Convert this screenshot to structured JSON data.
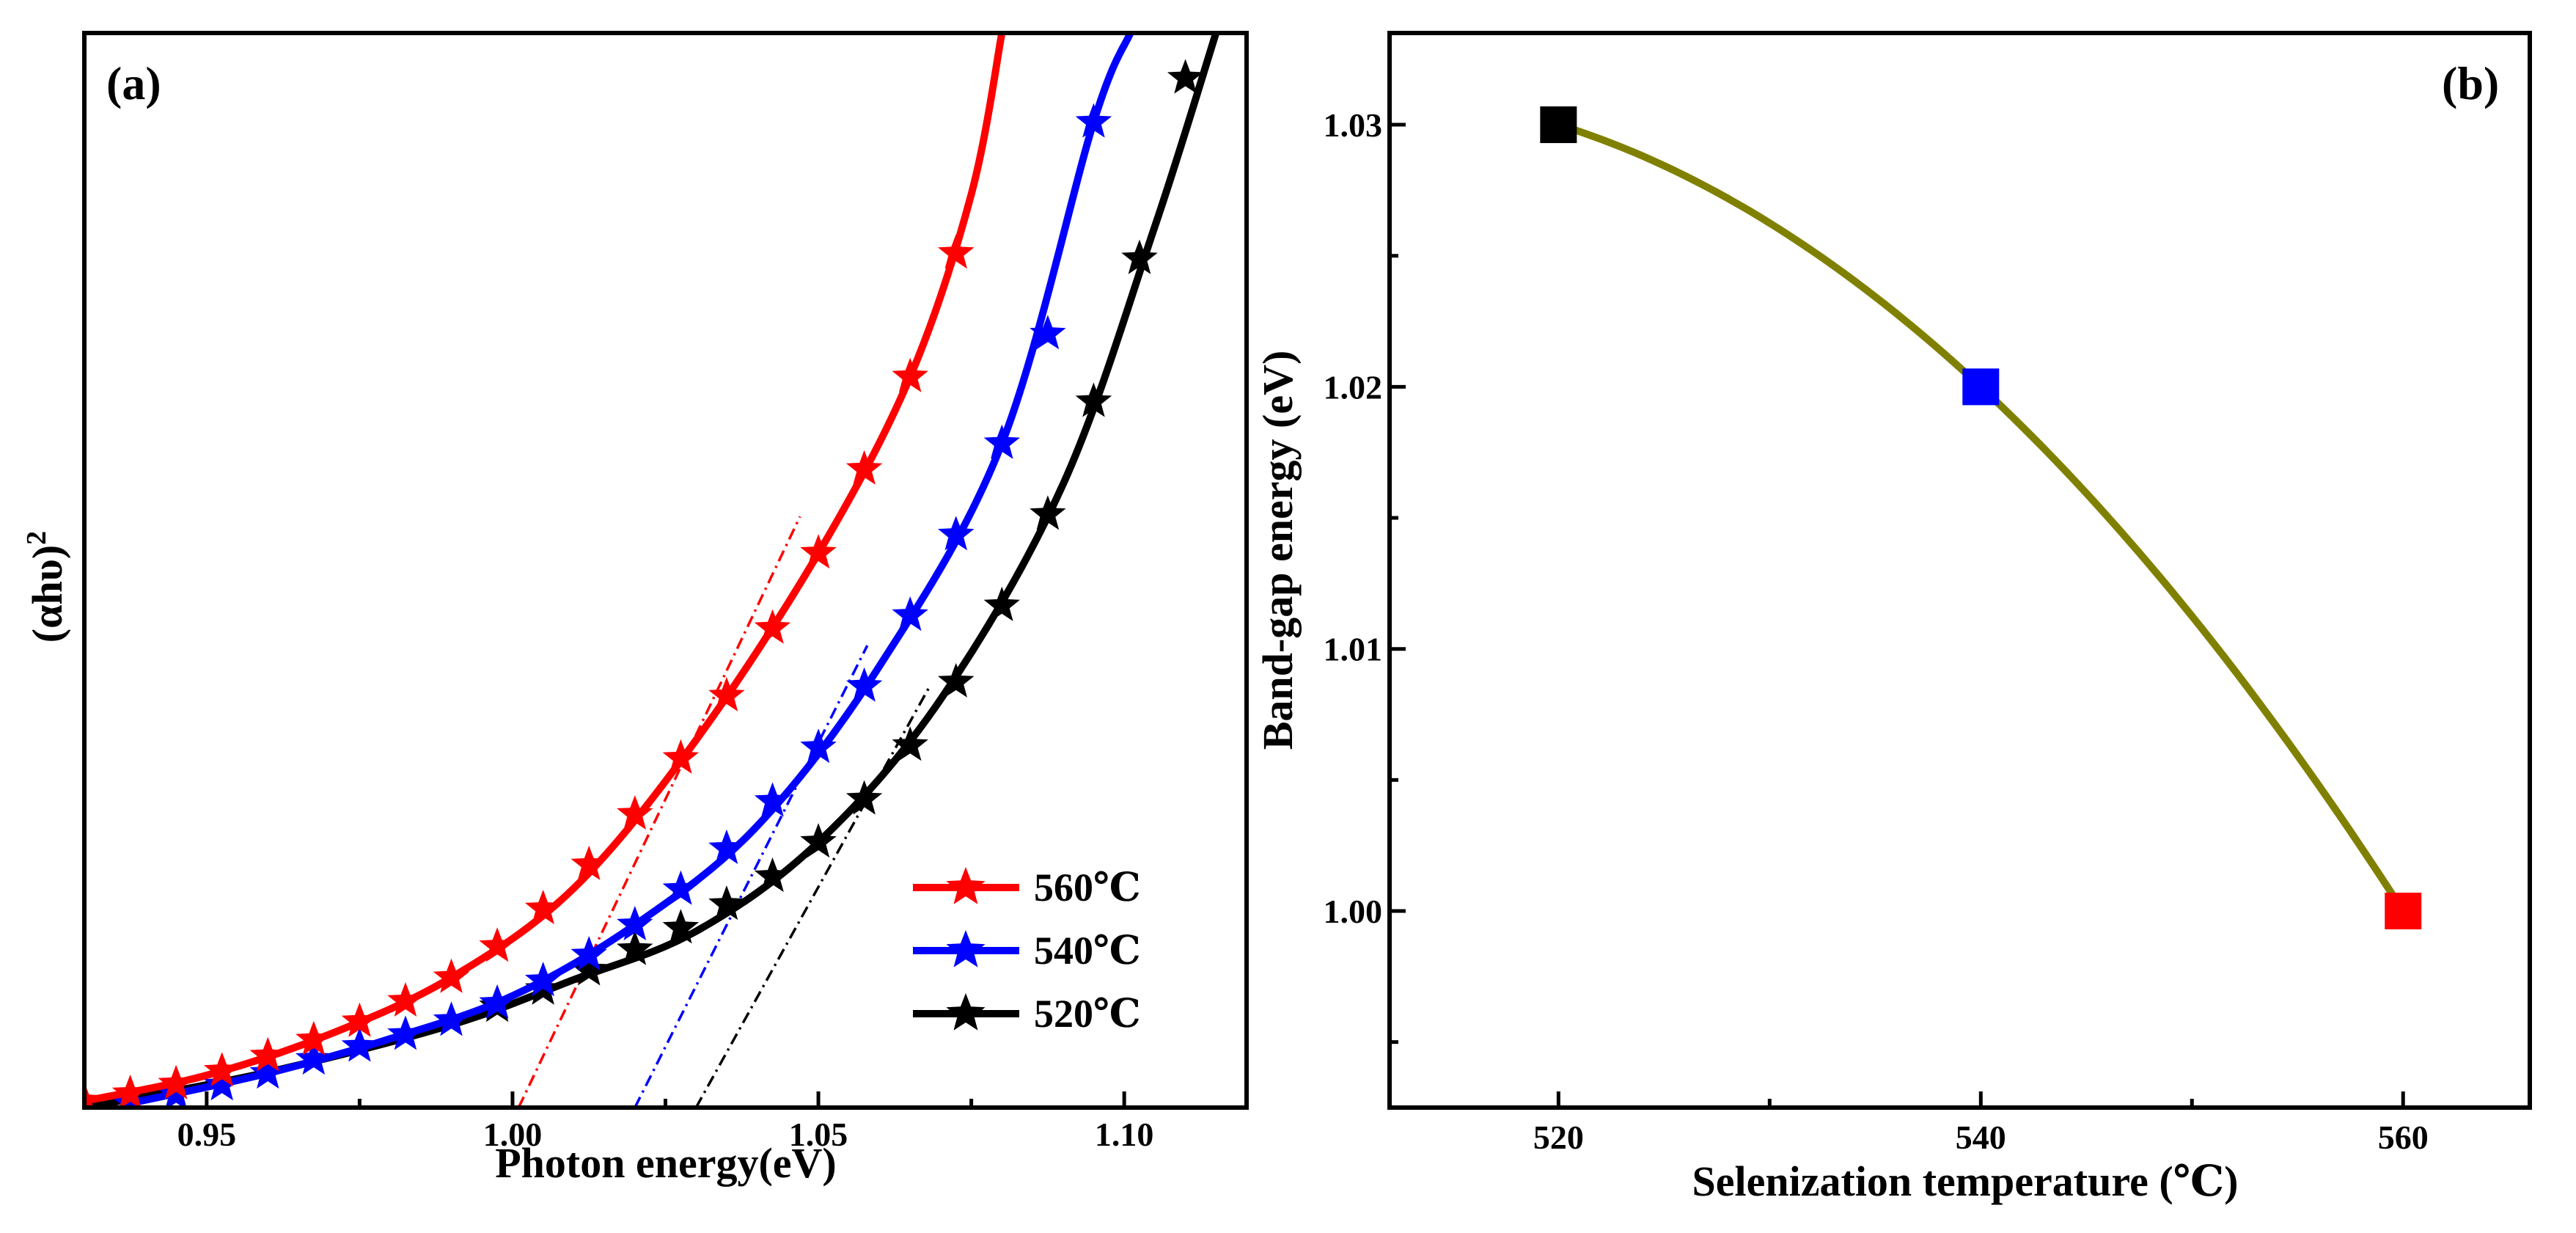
{
  "chart_data": [
    {
      "panel": "a",
      "type": "line",
      "panel_label": "(a)",
      "xlabel": "Photon energy(eV)",
      "ylabel_main": "(αhυ)",
      "ylabel_sup": "2",
      "xlim": [
        0.93,
        1.12
      ],
      "ylim": [
        0,
        1.0
      ],
      "x_ticks": [
        {
          "value": 0.95,
          "label": "0.95"
        },
        {
          "value": 1.0,
          "label": "1.00"
        },
        {
          "value": 1.05,
          "label": "1.05"
        },
        {
          "value": 1.1,
          "label": "1.10"
        }
      ],
      "legend_position": "bottom-right",
      "series": [
        {
          "name": "560℃",
          "color": "#ff0000",
          "marker": "star",
          "x": [
            0.93,
            0.9375,
            0.945,
            0.9525,
            0.96,
            0.9675,
            0.975,
            0.9825,
            0.99,
            0.9975,
            1.005,
            1.0125,
            1.02,
            1.0275,
            1.035,
            1.0425,
            1.05,
            1.0575,
            1.065,
            1.0725
          ],
          "y": [
            0.006,
            0.013,
            0.022,
            0.034,
            0.048,
            0.063,
            0.08,
            0.099,
            0.121,
            0.15,
            0.185,
            0.226,
            0.273,
            0.325,
            0.383,
            0.446,
            0.516,
            0.594,
            0.68,
            0.795
          ],
          "curve_x": [
            0.93,
            0.95,
            0.97,
            0.99,
            1.01,
            1.03,
            1.05,
            1.065,
            1.075,
            1.08
          ],
          "curve_y": [
            0.006,
            0.03,
            0.068,
            0.121,
            0.204,
            0.342,
            0.516,
            0.68,
            0.85,
            1.0
          ],
          "tangent": {
            "x0": 1.001,
            "y0": 0.0,
            "x1": 1.047,
            "y1": 0.55
          }
        },
        {
          "name": "540℃",
          "color": "#0000ff",
          "marker": "star",
          "x": [
            0.9375,
            0.945,
            0.9525,
            0.96,
            0.9675,
            0.975,
            0.9825,
            0.99,
            0.9975,
            1.005,
            1.0125,
            1.02,
            1.0275,
            1.035,
            1.0425,
            1.05,
            1.0575,
            1.065,
            1.0725,
            1.08,
            1.0875,
            1.095
          ],
          "y": [
            0.004,
            0.012,
            0.021,
            0.032,
            0.045,
            0.057,
            0.068,
            0.081,
            0.097,
            0.118,
            0.142,
            0.17,
            0.203,
            0.241,
            0.285,
            0.335,
            0.392,
            0.458,
            0.533,
            0.618,
            0.72,
            0.917
          ],
          "curve_x": [
            0.9375,
            0.96,
            0.98,
            1.0,
            1.02,
            1.04,
            1.06,
            1.08,
            1.095,
            1.101
          ],
          "curve_y": [
            0.004,
            0.032,
            0.064,
            0.104,
            0.17,
            0.262,
            0.411,
            0.618,
            0.917,
            1.0
          ],
          "tangent": {
            "x0": 1.02,
            "y0": 0.0,
            "x1": 1.058,
            "y1": 0.43
          }
        },
        {
          "name": "520℃",
          "color": "#000000",
          "marker": "star",
          "x": [
            0.9975,
            1.005,
            1.0125,
            1.02,
            1.0275,
            1.035,
            1.0425,
            1.05,
            1.0575,
            1.065,
            1.0725,
            1.08,
            1.0875,
            1.095,
            1.1025,
            1.11
          ],
          "y": [
            0.094,
            0.11,
            0.128,
            0.147,
            0.167,
            0.189,
            0.215,
            0.247,
            0.287,
            0.337,
            0.396,
            0.467,
            0.552,
            0.657,
            0.79,
            0.958
          ],
          "curve_x": [
            0.93,
            0.96,
            0.99,
            1.01,
            1.03,
            1.05,
            1.07,
            1.09,
            1.105,
            1.115
          ],
          "curve_y": [
            0.0,
            0.033,
            0.077,
            0.119,
            0.164,
            0.247,
            0.38,
            0.58,
            0.82,
            1.0
          ],
          "tangent": {
            "x0": 1.03,
            "y0": 0.0,
            "x1": 1.068,
            "y1": 0.39
          }
        }
      ]
    },
    {
      "panel": "b",
      "type": "line",
      "panel_label": "(b)",
      "xlabel": "Selenization temperature (℃)",
      "ylabel": "Band-gap energy (eV)",
      "xlim": [
        512,
        566
      ],
      "ylim": [
        0.9925,
        1.0335
      ],
      "x_ticks": [
        {
          "value": 520,
          "label": "520"
        },
        {
          "value": 540,
          "label": "540"
        },
        {
          "value": 560,
          "label": "560"
        }
      ],
      "y_ticks": [
        {
          "value": 1.0,
          "label": "1.00"
        },
        {
          "value": 1.01,
          "label": "1.01"
        },
        {
          "value": 1.02,
          "label": "1.02"
        },
        {
          "value": 1.03,
          "label": "1.03"
        }
      ],
      "curve_color": "#808000",
      "points": [
        {
          "x": 520,
          "y": 1.03,
          "color": "#000000"
        },
        {
          "x": 540,
          "y": 1.02,
          "color": "#0000ff"
        },
        {
          "x": 560,
          "y": 1.0,
          "color": "#ff0000"
        }
      ]
    }
  ]
}
